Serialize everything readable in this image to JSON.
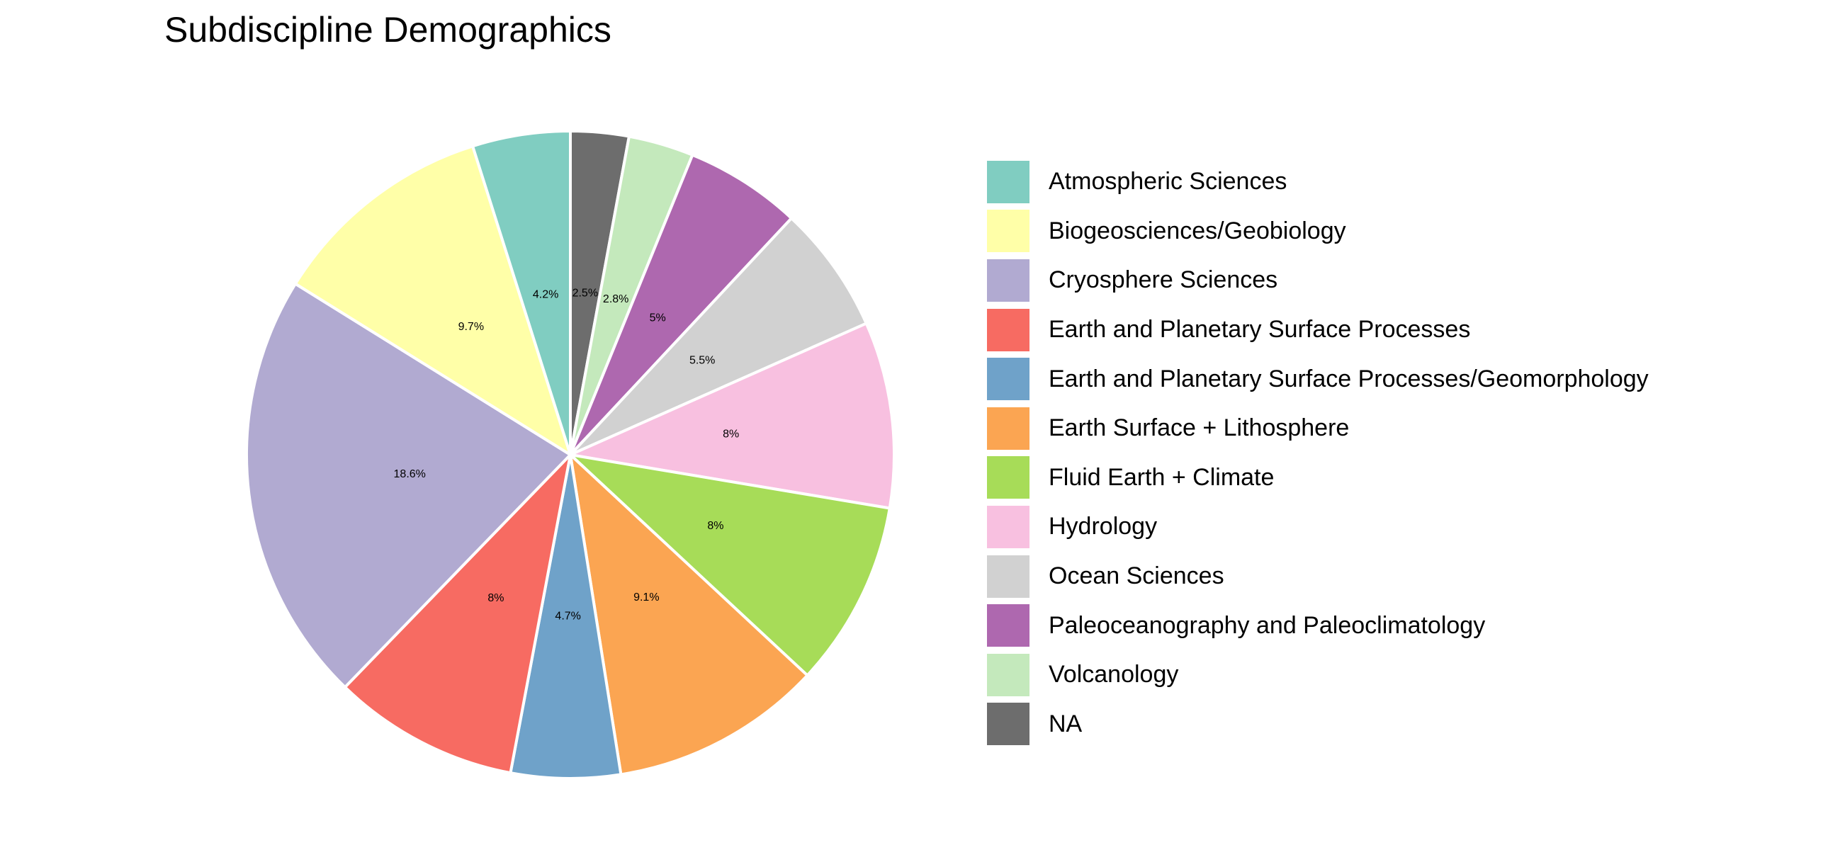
{
  "chart_data": {
    "type": "pie",
    "title": "Subdiscipline Demographics",
    "legend_placement": "right",
    "start": "12 o'clock",
    "direction": "clockwise",
    "slice_order": [
      "NA",
      "Volcanology",
      "Paleoceanography and Paleoclimatology",
      "Ocean Sciences",
      "Hydrology",
      "Fluid Earth + Climate",
      "Earth Surface + Lithosphere",
      "Earth and Planetary Surface Processes/Geomorphology",
      "Earth and Planetary Surface Processes",
      "Cryosphere Sciences",
      "Biogeosciences/Geobiology",
      "Atmospheric Sciences"
    ],
    "slices": [
      {
        "label": "Atmospheric Sciences",
        "value": 4.2,
        "value_label": "4.2%",
        "color": "#80CDC1"
      },
      {
        "label": "Biogeosciences/Geobiology",
        "value": 9.7,
        "value_label": "9.7%",
        "color": "#FFFFA8"
      },
      {
        "label": "Cryosphere Sciences",
        "value": 18.6,
        "value_label": "18.6%",
        "color": "#B1AAD1"
      },
      {
        "label": "Earth and Planetary Surface Processes",
        "value": 8,
        "value_label": "8%",
        "color": "#F76B62"
      },
      {
        "label": "Earth and Planetary Surface Processes/Geomorphology",
        "value": 4.7,
        "value_label": "4.7%",
        "color": "#6FA2C9"
      },
      {
        "label": "Earth Surface + Lithosphere",
        "value": 9.1,
        "value_label": "9.1%",
        "color": "#FBA552"
      },
      {
        "label": "Fluid Earth + Climate",
        "value": 8,
        "value_label": "8%",
        "color": "#A7DC58"
      },
      {
        "label": "Hydrology",
        "value": 8,
        "value_label": "8%",
        "color": "#F8C0E0"
      },
      {
        "label": "Ocean Sciences",
        "value": 5.5,
        "value_label": "5.5%",
        "color": "#D1D1D1"
      },
      {
        "label": "Paleoceanography and Paleoclimatology",
        "value": 5,
        "value_label": "5%",
        "color": "#AE68AF"
      },
      {
        "label": "Volcanology",
        "value": 2.8,
        "value_label": "2.8%",
        "color": "#C4E9BC"
      },
      {
        "label": "NA",
        "value": 2.5,
        "value_label": "2.5%",
        "color": "#6D6D6D"
      }
    ]
  }
}
